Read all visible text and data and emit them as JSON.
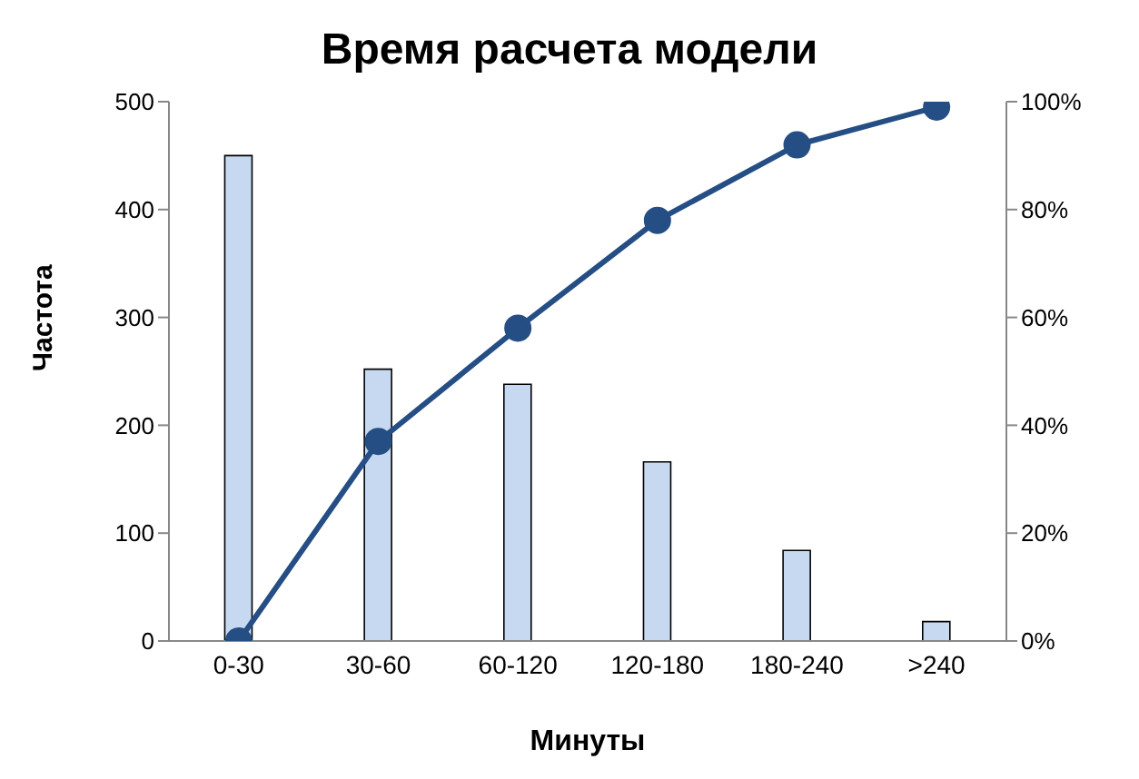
{
  "chart_data": {
    "type": "bar",
    "title": "Время расчета модели",
    "xlabel": "Минуты",
    "ylabel": "Частота",
    "categories": [
      "0-30",
      "30-60",
      "60-120",
      "120-180",
      "180-240",
      ">240"
    ],
    "series": [
      {
        "color": "#c6d9f1",
        "values": [
          450,
          252,
          238,
          166,
          84,
          18
        ]
      },
      {
        "type": "line",
        "axis": "y2",
        "color": "#254e85",
        "values": [
          0,
          37,
          58,
          78,
          92,
          99
        ]
      }
    ],
    "ylim": [
      0,
      500
    ],
    "yticks": [
      0,
      100,
      200,
      300,
      400,
      500
    ],
    "y2lim": [
      0,
      100
    ],
    "y2ticks": [
      {
        "value": 0,
        "label": "0%"
      },
      {
        "value": 20,
        "label": "20%"
      },
      {
        "value": 40,
        "label": "40%"
      },
      {
        "value": 60,
        "label": "60%"
      },
      {
        "value": 80,
        "label": "80%"
      },
      {
        "value": 100,
        "label": "100%"
      }
    ],
    "grid": false,
    "legend": false,
    "marker": "circle",
    "line_style": "solid"
  }
}
